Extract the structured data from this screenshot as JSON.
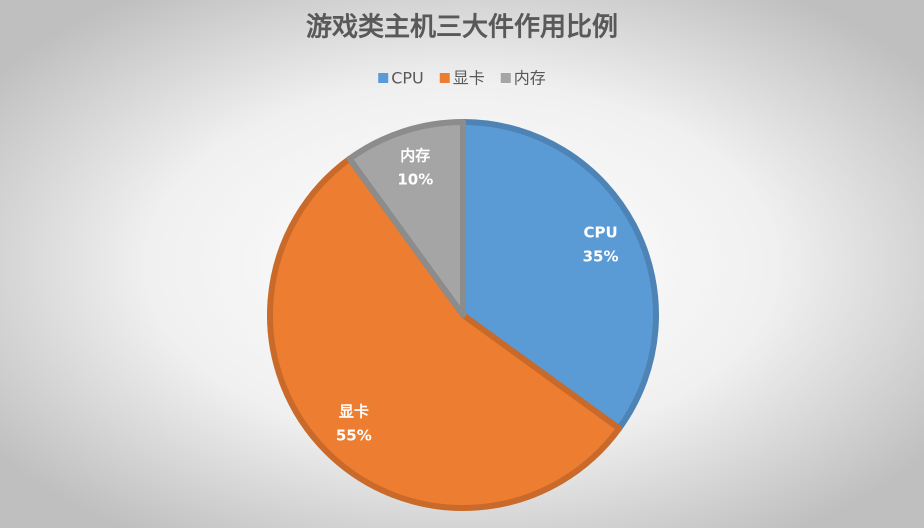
{
  "chart_data": {
    "type": "pie",
    "title": "游戏类主机三大件作用比例",
    "categories": [
      "CPU",
      "显卡",
      "内存"
    ],
    "values": [
      35,
      55,
      10
    ],
    "value_labels": [
      "35%",
      "55%",
      "10%"
    ],
    "colors": [
      "#5b9bd5",
      "#ed7d31",
      "#a5a5a5"
    ],
    "legend": "top"
  }
}
